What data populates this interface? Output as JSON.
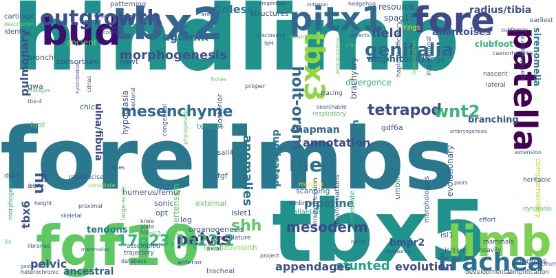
{
  "palette": {
    "dark_purple": "#440154",
    "indigo": "#3b528b",
    "slate_blue": "#31688e",
    "teal": "#21918c",
    "green": "#35b779",
    "lime": "#90d743",
    "yellow": "#fde725"
  },
  "words": [
    {
      "text": "hindlimb",
      "color": "#21918c"
    },
    {
      "text": "forelimbs",
      "color": "#2a788e"
    },
    {
      "text": "tbx5",
      "color": "#21918c"
    },
    {
      "text": "fgf10",
      "color": "#5ec962"
    },
    {
      "text": "tbx2",
      "color": "#31688e"
    },
    {
      "text": "limb",
      "color": "#7ad151"
    },
    {
      "text": "bud",
      "color": "#3b0f70"
    },
    {
      "text": "pitx1",
      "color": "#31688e"
    },
    {
      "text": "fore",
      "color": "#3e4989"
    },
    {
      "text": "patella",
      "color": "#440154"
    },
    {
      "text": "trachea",
      "color": "#2c728e"
    },
    {
      "text": "tbx3",
      "color": "#90d743"
    },
    {
      "text": "outgrowth",
      "color": "#3b528b"
    },
    {
      "text": "genitalia",
      "color": "#31688e"
    },
    {
      "text": "hleb",
      "color": "#2c728e"
    },
    {
      "text": "mesenchyme",
      "color": "#31688e"
    },
    {
      "text": "tetrapod",
      "color": "#3e4989"
    },
    {
      "text": "wnt2",
      "color": "#35b779"
    },
    {
      "text": "holt-oram",
      "color": "#31688e"
    },
    {
      "text": "pelvis",
      "color": "#472d7b"
    },
    {
      "text": "shh",
      "color": "#5ec962"
    },
    {
      "text": "17q23.1q23.2",
      "color": "#35b779"
    },
    {
      "text": "mesoderm",
      "color": "#3e4989"
    },
    {
      "text": "stunted",
      "color": "#21a685"
    },
    {
      "text": "morphogenesis",
      "color": "#3b528b"
    },
    {
      "text": "field",
      "color": "#3b528b"
    },
    {
      "text": "agulnik",
      "color": "#31688e"
    },
    {
      "text": "finless",
      "color": "#2a788e"
    },
    {
      "text": "fin",
      "color": "#3b528b"
    },
    {
      "text": "pelvic",
      "color": "#3b528b"
    },
    {
      "text": "appendages",
      "color": "#3b528b"
    },
    {
      "text": "evolution",
      "color": "#3e4989"
    },
    {
      "text": "ancestral",
      "color": "#31688e"
    },
    {
      "text": "anomalies",
      "color": "#2c728e"
    },
    {
      "text": "annotation",
      "color": "#3e4989"
    },
    {
      "text": "pipeline",
      "color": "#2c728e"
    },
    {
      "text": "duplicated",
      "color": "#2a788e"
    },
    {
      "text": "ulna/fibula",
      "color": "#3e4989"
    },
    {
      "text": "pulmonary",
      "color": "#3b528b"
    },
    {
      "text": "radius/tibia",
      "color": "#3b528b"
    },
    {
      "text": "allantoises",
      "color": "#3b528b"
    },
    {
      "text": "sirenomelia",
      "color": "#2a788e"
    },
    {
      "text": "clubfoot",
      "color": "#35b779"
    },
    {
      "text": "amphitbx4/5",
      "color": "#31688e"
    },
    {
      "text": "branching",
      "color": "#3b528b"
    },
    {
      "text": "tendons",
      "color": "#2a788e"
    },
    {
      "text": "bmpr2",
      "color": "#3b528b"
    },
    {
      "text": "tbx6",
      "color": "#3b528b"
    },
    {
      "text": "chapman",
      "color": "#31688e"
    },
    {
      "text": "riken",
      "color": "#2a788e"
    },
    {
      "text": "structures",
      "color": "#3b528b"
    },
    {
      "text": "resource",
      "color": "#3b528b"
    },
    {
      "text": "spag17",
      "color": "#3b528b"
    },
    {
      "text": "lungs",
      "color": "#31688e"
    },
    {
      "text": "divergence",
      "color": "#35b779"
    },
    {
      "text": "brachyury",
      "color": "#3b528b"
    },
    {
      "text": "evolutionary",
      "color": "#31688e"
    },
    {
      "text": "complementary",
      "color": "#bddf26"
    },
    {
      "text": "hypoplasia",
      "color": "#3b528b"
    },
    {
      "text": "posterior",
      "color": "#3e4989"
    },
    {
      "text": "hypertension",
      "color": "#5ec962"
    },
    {
      "text": "ancient",
      "color": "#7ad151"
    },
    {
      "text": "consortium",
      "color": "#3b528b"
    },
    {
      "text": "bronchi",
      "color": "#3b528b"
    },
    {
      "text": "umbilicus",
      "color": "#2a788e"
    },
    {
      "text": "morphologies",
      "color": "#3b528b"
    },
    {
      "text": "sonic",
      "color": "#3b528b"
    },
    {
      "text": "opt",
      "color": "#3b528b"
    },
    {
      "text": "leg",
      "color": "#3e4989"
    },
    {
      "text": "fgf",
      "color": "#3b528b"
    },
    {
      "text": "sall4",
      "color": "#3b528b"
    },
    {
      "text": "teleost",
      "color": "#21a685"
    },
    {
      "text": "newt",
      "color": "#3b528b"
    },
    {
      "text": "organogenesis",
      "color": "#3b528b"
    },
    {
      "text": "humerus/femur",
      "color": "#3b528b"
    },
    {
      "text": "external",
      "color": "#5ec962"
    },
    {
      "text": "scanning",
      "color": "#31688e"
    },
    {
      "text": "gdf6a",
      "color": "#3b528b"
    },
    {
      "text": "islet1",
      "color": "#3b528b"
    },
    {
      "text": "isl1",
      "color": "#3b528b"
    },
    {
      "text": "mammals",
      "color": "#3e4989"
    },
    {
      "text": "genomes",
      "color": "#3b528b"
    },
    {
      "text": "isl1cre",
      "color": "#3b528b"
    },
    {
      "text": "misexpression",
      "color": "#3b528b"
    },
    {
      "text": "vertebrate",
      "color": "#35b779"
    },
    {
      "text": "malformations",
      "color": "#3b528b"
    },
    {
      "text": "allantois",
      "color": "#21a685"
    },
    {
      "text": "embryo",
      "color": "#3b528b"
    },
    {
      "text": "foundation",
      "color": "#90d743"
    },
    {
      "text": "birth",
      "color": "#7ad151"
    },
    {
      "text": "vasculature",
      "color": "#3b528b"
    },
    {
      "text": "axial",
      "color": "#3b528b"
    },
    {
      "text": "gli3",
      "color": "#5ec962"
    },
    {
      "text": "assembled",
      "color": "#3b528b"
    },
    {
      "text": "trajectory",
      "color": "#3b528b"
    },
    {
      "text": "tracheal",
      "color": "#3b528b"
    },
    {
      "text": "anterior",
      "color": "#3b528b"
    },
    {
      "text": "heterochronic",
      "color": "#3b528b"
    },
    {
      "text": "gastrulation",
      "color": "#3b528b"
    },
    {
      "text": "morphogenetic",
      "color": "#21a685"
    },
    {
      "text": "aer",
      "color": "#3b528b"
    },
    {
      "text": "digits",
      "color": "#3b528b"
    },
    {
      "text": "height",
      "color": "#3b528b"
    },
    {
      "text": "proximal",
      "color": "#3b528b"
    },
    {
      "text": "skeletal",
      "color": "#3b528b"
    },
    {
      "text": "libraries",
      "color": "#3b528b"
    },
    {
      "text": "relies",
      "color": "#3b528b"
    },
    {
      "text": "precise",
      "color": "#3b528b"
    },
    {
      "text": "candidate",
      "color": "#90d743"
    },
    {
      "text": "clones",
      "color": "#3b528b"
    },
    {
      "text": "foot",
      "color": "#5ec962"
    },
    {
      "text": "chick",
      "color": "#3b528b"
    },
    {
      "text": "tbx-4",
      "color": "#3b528b"
    },
    {
      "text": "lineages",
      "color": "#5ec962"
    },
    {
      "text": "gwa",
      "color": "#3b528b"
    },
    {
      "text": "identity",
      "color": "#3b528b"
    },
    {
      "text": "cartilage",
      "color": "#3b528b"
    },
    {
      "text": "description",
      "color": "#5ec962"
    },
    {
      "text": "patterning",
      "color": "#3b528b"
    },
    {
      "text": "congenital",
      "color": "#3b528b"
    },
    {
      "text": "phylogenetic",
      "color": "#5ec962"
    },
    {
      "text": "pectoral",
      "color": "#3b528b"
    },
    {
      "text": "cdnas",
      "color": "#3b528b"
    },
    {
      "text": "hybridization",
      "color": "#3b528b"
    },
    {
      "text": "proper",
      "color": "#3b528b"
    },
    {
      "text": "fishes",
      "color": "#5ec962"
    },
    {
      "text": "discovery",
      "color": "#3b528b"
    },
    {
      "text": "defects",
      "color": "#3b528b"
    },
    {
      "text": "incomplete",
      "color": "#5ec962"
    },
    {
      "text": "anteroposterior",
      "color": "#5ec962"
    },
    {
      "text": "respiratory",
      "color": "#5ec962"
    },
    {
      "text": "searchable",
      "color": "#3b528b"
    },
    {
      "text": "tracing",
      "color": "#3b528b"
    },
    {
      "text": "haploinsufficiency",
      "color": "#3b528b"
    },
    {
      "text": "organization",
      "color": "#5ec962"
    },
    {
      "text": "international",
      "color": "#3b528b"
    },
    {
      "text": "nascent",
      "color": "#3b528b"
    },
    {
      "text": "lateral",
      "color": "#3b528b"
    },
    {
      "text": "spatiotemporal",
      "color": "#3b528b"
    },
    {
      "text": "rings",
      "color": "#fde725"
    },
    {
      "text": "caenorhabditis",
      "color": "#3b528b"
    },
    {
      "text": "subfamily",
      "color": "#3b528b"
    },
    {
      "text": "earliest",
      "color": "#3b528b"
    },
    {
      "text": "hedgehog",
      "color": "#3b528b"
    },
    {
      "text": "initiation",
      "color": "#3b528b"
    },
    {
      "text": "progenitors",
      "color": "#3b528b"
    },
    {
      "text": "elegans",
      "color": "#3b528b"
    },
    {
      "text": "wnt",
      "color": "#3b528b"
    },
    {
      "text": "extension",
      "color": "#3b528b"
    },
    {
      "text": "heritable",
      "color": "#3b528b"
    },
    {
      "text": "dysplasia",
      "color": "#5ec962"
    },
    {
      "text": "effort",
      "color": "#3b528b"
    },
    {
      "text": "heavily",
      "color": "#3b528b"
    },
    {
      "text": "developmental",
      "color": "#3b528b"
    },
    {
      "text": "simplification",
      "color": "#3b528b"
    },
    {
      "text": "networks",
      "color": "#3b528b"
    },
    {
      "text": "heart",
      "color": "#3b528b"
    },
    {
      "text": "project",
      "color": "#3b528b"
    },
    {
      "text": "mammalian",
      "color": "#3b528b"
    },
    {
      "text": "database",
      "color": "#3b528b"
    },
    {
      "text": "knee",
      "color": "#3b528b"
    },
    {
      "text": "plate",
      "color": "#3b528b"
    },
    {
      "text": "hip",
      "color": "#3b528b"
    },
    {
      "text": "large-scale",
      "color": "#5ec962"
    },
    {
      "text": "3d",
      "color": "#5ec962"
    },
    {
      "text": "sac",
      "color": "#3b528b"
    },
    {
      "text": "coding",
      "color": "#3b528b"
    },
    {
      "text": "somites",
      "color": "#3b528b"
    },
    {
      "text": "fgf4",
      "color": "#3b528b"
    },
    {
      "text": "cre",
      "color": "#5ec962"
    },
    {
      "text": "pairs",
      "color": "#3b528b"
    },
    {
      "text": "mapping",
      "color": "#fde725"
    },
    {
      "text": "embryogenesis",
      "color": "#3b528b"
    },
    {
      "text": "spectrum",
      "color": "#3b528b"
    }
  ]
}
